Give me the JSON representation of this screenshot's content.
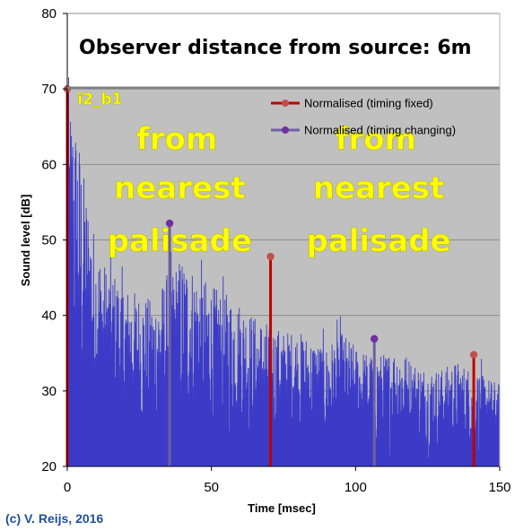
{
  "chart_data": {
    "type": "line",
    "title": "Observer distance from source: 6m",
    "xlabel": "Time [msec]",
    "ylabel": "Sound level [dB]",
    "xlim": [
      0,
      150
    ],
    "ylim": [
      20,
      80
    ],
    "x_ticks": [
      "0",
      "50",
      "100",
      "150"
    ],
    "y_ticks": [
      "20",
      "30",
      "40",
      "50",
      "60",
      "70",
      "80"
    ],
    "grid": "horizontal",
    "legend_position": "top-right",
    "plot_background": "#c0c0c0",
    "envelope": [
      [
        0,
        68
      ],
      [
        2,
        66
      ],
      [
        4,
        62
      ],
      [
        6,
        56
      ],
      [
        8,
        52
      ],
      [
        10,
        48
      ],
      [
        13,
        45
      ],
      [
        16,
        44
      ],
      [
        20,
        42
      ],
      [
        25,
        41
      ],
      [
        30,
        40
      ],
      [
        35,
        44
      ],
      [
        40,
        46
      ],
      [
        45,
        44
      ],
      [
        50,
        42
      ],
      [
        55,
        41
      ],
      [
        60,
        40
      ],
      [
        65,
        38
      ],
      [
        70,
        37
      ],
      [
        75,
        36
      ],
      [
        80,
        36
      ],
      [
        85,
        35
      ],
      [
        90,
        34
      ],
      [
        95,
        36
      ],
      [
        100,
        34
      ],
      [
        105,
        33
      ],
      [
        110,
        33
      ],
      [
        115,
        34
      ],
      [
        120,
        32
      ],
      [
        125,
        31
      ],
      [
        130,
        31
      ],
      [
        135,
        32
      ],
      [
        140,
        31
      ],
      [
        145,
        30
      ],
      [
        150,
        29
      ]
    ],
    "series": [
      {
        "name": "Normalised (timing fixed)",
        "color": "#c00000",
        "marker_color": "#c0504d",
        "points": [
          [
            0,
            70
          ],
          [
            70.5,
            47.8
          ],
          [
            141,
            34.8
          ]
        ]
      },
      {
        "name": "Normalised (timing changing)",
        "color": "#7060a0",
        "marker_color": "#7030a0",
        "points": [
          [
            35.5,
            52.2
          ],
          [
            106.5,
            36.9
          ]
        ]
      }
    ],
    "annotations": [
      {
        "text": "from",
        "x": 38,
        "y": 62
      },
      {
        "text": "nearest",
        "x": 39,
        "y": 55.5
      },
      {
        "text": "palisade",
        "x": 39,
        "y": 48.5
      },
      {
        "text": "from",
        "x": 107,
        "y": 62
      },
      {
        "text": "nearest",
        "x": 108,
        "y": 55.5
      },
      {
        "text": "palisade",
        "x": 108,
        "y": 48.5
      },
      {
        "text": "i2_b1",
        "x": 3.5,
        "y": 68
      }
    ],
    "signal_color": "#3b3bc8"
  },
  "credit": "(c) V. Reijs, 2016"
}
